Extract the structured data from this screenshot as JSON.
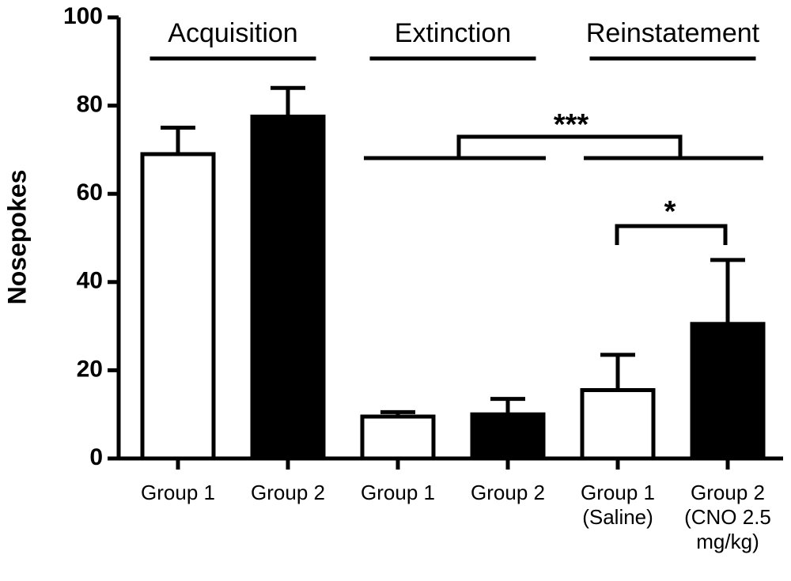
{
  "chart_data": {
    "type": "bar",
    "y_label": "Nosepokes",
    "categories": [
      "Group 1",
      "Group 2",
      "Group 1",
      "Group 2",
      "Group 1\n(Saline)",
      "Group 2\n(CNO 2.5\nmg/kg)"
    ],
    "values": [
      69,
      77.5,
      9.5,
      10,
      15.5,
      30.5
    ],
    "errors": [
      6,
      6.5,
      1,
      3.5,
      8,
      14.5
    ],
    "colors": [
      "#ffffff",
      "#000000",
      "#ffffff",
      "#000000",
      "#ffffff",
      "#000000"
    ],
    "phases": [
      "Acquisition",
      "Extinction",
      "Reinstatement"
    ],
    "significance": [
      "***",
      "*"
    ],
    "ylim": [
      0,
      100
    ],
    "yticks": [
      0,
      20,
      40,
      60,
      80,
      100
    ]
  }
}
